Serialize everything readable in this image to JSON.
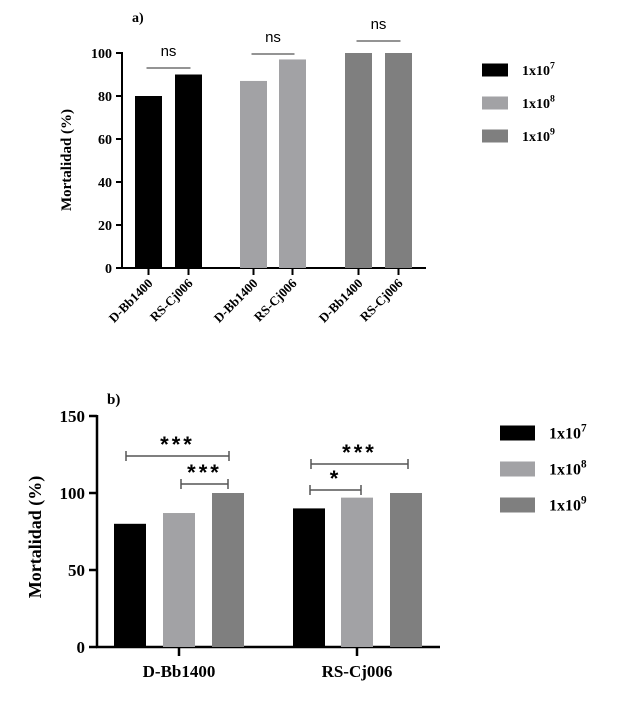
{
  "chart_data": [
    {
      "type": "bar",
      "panel": "a)",
      "title": "",
      "ylabel": "Mortalidad (%)",
      "xlabel": "",
      "ylim": [
        0,
        100
      ],
      "yticks": [
        "0",
        "20",
        "40",
        "60",
        "80",
        "100"
      ],
      "groups": [
        {
          "series": "1x10^7",
          "categories": [
            "D-Bb1400",
            "RS-Cj006"
          ],
          "values": [
            80,
            90
          ],
          "annotation": "ns"
        },
        {
          "series": "1x10^8",
          "categories": [
            "D-Bb1400",
            "RS-Cj006"
          ],
          "values": [
            87,
            97
          ],
          "annotation": "ns"
        },
        {
          "series": "1x10^9",
          "categories": [
            "D-Bb1400",
            "RS-Cj006"
          ],
          "values": [
            100,
            100
          ],
          "annotation": "ns"
        }
      ],
      "legend": {
        "placement": "right",
        "entries": [
          {
            "base": "1x10",
            "exp": "7",
            "color": "#000000"
          },
          {
            "base": "1x10",
            "exp": "8",
            "color": "#a2a2a5"
          },
          {
            "base": "1x10",
            "exp": "9",
            "color": "#7f7f7f"
          }
        ]
      }
    },
    {
      "type": "bar",
      "panel": "b)",
      "title": "",
      "ylabel": "Mortalidad (%)",
      "xlabel": "",
      "ylim": [
        0,
        150
      ],
      "yticks": [
        "0",
        "50",
        "100",
        "150"
      ],
      "categories": [
        "D-Bb1400",
        "RS-Cj006"
      ],
      "series": [
        {
          "name": "1x10^7",
          "values": [
            80,
            90
          ]
        },
        {
          "name": "1x10^8",
          "values": [
            87,
            97
          ]
        },
        {
          "name": "1x10^9",
          "values": [
            100,
            100
          ]
        }
      ],
      "significance": [
        {
          "category": "D-Bb1400",
          "from": "1x10^7",
          "to": "1x10^9",
          "label": "***"
        },
        {
          "category": "D-Bb1400",
          "from": "1x10^8",
          "to": "1x10^9",
          "label": "***"
        },
        {
          "category": "RS-Cj006",
          "from": "1x10^7",
          "to": "1x10^9",
          "label": "***"
        },
        {
          "category": "RS-Cj006",
          "from": "1x10^7",
          "to": "1x10^8",
          "label": "*"
        }
      ],
      "legend": {
        "placement": "right",
        "entries": [
          {
            "base": "1x10",
            "exp": "7",
            "color": "#000000"
          },
          {
            "base": "1x10",
            "exp": "8",
            "color": "#a2a2a5"
          },
          {
            "base": "1x10",
            "exp": "9",
            "color": "#7f7f7f"
          }
        ]
      }
    }
  ]
}
